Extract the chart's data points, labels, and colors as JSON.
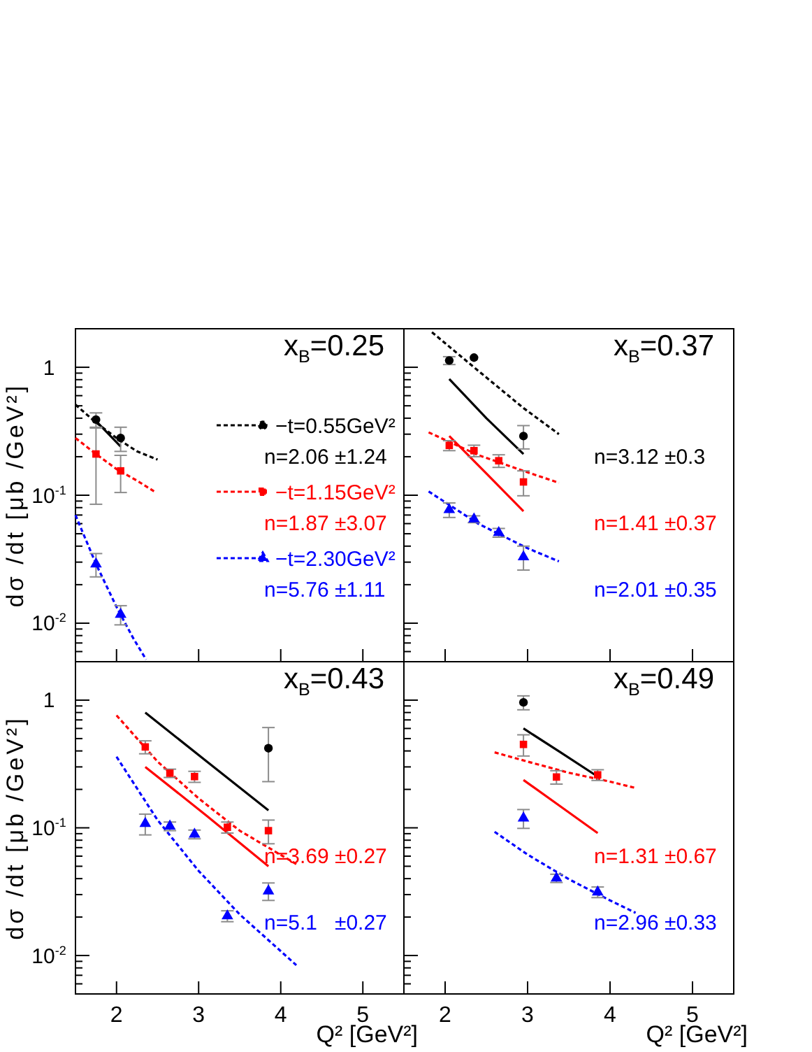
{
  "chart_data": [
    {
      "type": "line",
      "title": "x$_{B}$=0.25",
      "ylabel": "dσ /dt [μb /GeV²]",
      "xlim": [
        1.5,
        5.5
      ],
      "xticks": [
        2,
        3,
        4,
        5
      ],
      "ylim": [
        0.005,
        2
      ],
      "yticks": [
        {
          "value": 0.006,
          "label": null
        },
        {
          "value": 0.007,
          "label": null
        },
        {
          "value": 0.008,
          "label": null
        },
        {
          "value": 0.009,
          "label": null
        },
        {
          "value": 0.01,
          "label": "10$^{-2}$"
        },
        {
          "value": 0.02,
          "label": null
        },
        {
          "value": 0.03,
          "label": null
        },
        {
          "value": 0.04,
          "label": null
        },
        {
          "value": 0.05,
          "label": null
        },
        {
          "value": 0.06,
          "label": null
        },
        {
          "value": 0.07,
          "label": null
        },
        {
          "value": 0.08,
          "label": null
        },
        {
          "value": 0.09,
          "label": null
        },
        {
          "value": 0.1,
          "label": "10$^{-1}$"
        },
        {
          "value": 0.2,
          "label": null
        },
        {
          "value": 0.3,
          "label": null
        },
        {
          "value": 0.4,
          "label": null
        },
        {
          "value": 0.5,
          "label": null
        },
        {
          "value": 0.6,
          "label": null
        },
        {
          "value": 0.7,
          "label": null
        },
        {
          "value": 0.8,
          "label": null
        },
        {
          "value": 0.9,
          "label": null
        },
        1
      ],
      "log": "y",
      "tick_labels": "y",
      "legend": "right",
      "series": [
        {
          "type": "scatter",
          "name": "−t=0.55GeV²",
          "color": "#000000",
          "marker": "circle",
          "x": [
            1.75,
            2.05
          ],
          "values": [
            0.39,
            0.28
          ],
          "errors": [
            0.05,
            0.06
          ]
        },
        {
          "type": "line",
          "name": "n=2.06 ±1.24",
          "color": "#000000",
          "line_style": "dotted",
          "x": [
            1.5,
            1.75,
            2.0,
            2.25,
            2.5
          ],
          "values": [
            0.51,
            0.37,
            0.28,
            0.22,
            0.19
          ]
        },
        {
          "type": "line",
          "color": "#000000",
          "line_style": "solid",
          "x": [
            1.75,
            2.05
          ],
          "values": [
            0.38,
            0.24
          ]
        },
        {
          "type": "scatter",
          "name": "−t=1.15GeV²",
          "color": "#ff0000",
          "marker": "square",
          "x": [
            1.75,
            2.05
          ],
          "values": [
            0.21,
            0.155
          ],
          "errors": [
            0.125,
            0.05
          ]
        },
        {
          "type": "line",
          "name": "n=1.87 ±3.07",
          "color": "#ff0000",
          "line_style": "dotted",
          "x": [
            1.5,
            1.75,
            2.0,
            2.25,
            2.48
          ],
          "values": [
            0.28,
            0.21,
            0.16,
            0.13,
            0.105
          ]
        },
        {
          "type": "scatter",
          "name": "−t=2.30GeV²",
          "color": "#0000ff",
          "marker": "triangle",
          "x": [
            1.75,
            2.05
          ],
          "values": [
            0.029,
            0.0117
          ],
          "errors": [
            0.006,
            0.002
          ]
        },
        {
          "type": "line",
          "name": "n=5.76 ±1.11",
          "color": "#0000ff",
          "line_style": "dotted",
          "x": [
            1.5,
            1.75,
            2.0,
            2.2,
            2.36
          ],
          "values": [
            0.07,
            0.029,
            0.0134,
            0.0077,
            0.0052
          ]
        }
      ]
    },
    {
      "type": "line",
      "title": "x$_{B}$=0.37",
      "xlim": [
        1.5,
        5.5
      ],
      "xticks": [
        2,
        3,
        4,
        5
      ],
      "ylim": [
        0.005,
        2
      ],
      "yticks": [
        {
          "value": 0.006,
          "label": null
        },
        {
          "value": 0.007,
          "label": null
        },
        {
          "value": 0.008,
          "label": null
        },
        {
          "value": 0.009,
          "label": null
        },
        0.01,
        {
          "value": 0.02,
          "label": null
        },
        {
          "value": 0.03,
          "label": null
        },
        {
          "value": 0.04,
          "label": null
        },
        {
          "value": 0.05,
          "label": null
        },
        {
          "value": 0.06,
          "label": null
        },
        {
          "value": 0.07,
          "label": null
        },
        {
          "value": 0.08,
          "label": null
        },
        {
          "value": 0.09,
          "label": null
        },
        0.1,
        {
          "value": 0.2,
          "label": null
        },
        {
          "value": 0.3,
          "label": null
        },
        {
          "value": 0.4,
          "label": null
        },
        {
          "value": 0.5,
          "label": null
        },
        {
          "value": 0.6,
          "label": null
        },
        {
          "value": 0.7,
          "label": null
        },
        {
          "value": 0.8,
          "label": null
        },
        {
          "value": 0.9,
          "label": null
        },
        1
      ],
      "log": "y",
      "tick_labels": false,
      "series": [
        {
          "type": "scatter",
          "color": "#000000",
          "marker": "circle",
          "x": [
            2.05,
            2.35,
            2.95
          ],
          "values": [
            1.13,
            1.19,
            0.29
          ],
          "errors": [
            0.08,
            null,
            0.06
          ]
        },
        {
          "type": "line",
          "name": "n=3.12 ±0.3",
          "color": "#000000",
          "line_style": "dotted",
          "x": [
            1.84,
            2.35,
            2.95,
            3.38
          ],
          "values": [
            1.88,
            1.0,
            0.48,
            0.3
          ]
        },
        {
          "type": "line",
          "color": "#000000",
          "line_style": "solid",
          "x": [
            2.05,
            2.5,
            2.95
          ],
          "values": [
            0.81,
            0.4,
            0.21
          ]
        },
        {
          "type": "scatter",
          "color": "#ff0000",
          "marker": "square",
          "x": [
            2.05,
            2.35,
            2.65,
            2.95
          ],
          "values": [
            0.245,
            0.223,
            0.186,
            0.127
          ],
          "errors": [
            0.022,
            0.023,
            0.021,
            0.028
          ]
        },
        {
          "type": "line",
          "name": "n=1.41 ±0.37",
          "color": "#ff0000",
          "line_style": "dotted",
          "x": [
            1.8,
            2.4,
            3.0,
            3.38
          ],
          "values": [
            0.31,
            0.206,
            0.151,
            0.125
          ]
        },
        {
          "type": "line",
          "color": "#ff0000",
          "line_style": "solid",
          "x": [
            2.05,
            2.5,
            2.95
          ],
          "values": [
            0.29,
            0.148,
            0.075
          ]
        },
        {
          "type": "scatter",
          "color": "#0000ff",
          "marker": "triangle",
          "x": [
            2.05,
            2.35,
            2.65,
            2.95
          ],
          "values": [
            0.077,
            0.065,
            0.051,
            0.033
          ],
          "errors": [
            0.01,
            0.004,
            0.004,
            0.007
          ]
        },
        {
          "type": "line",
          "name": "n=2.01 ±0.35",
          "color": "#0000ff",
          "line_style": "dotted",
          "x": [
            1.8,
            2.4,
            3.0,
            3.38
          ],
          "values": [
            0.107,
            0.06,
            0.0385,
            0.0304
          ]
        }
      ]
    },
    {
      "type": "line",
      "title": "x$_{B}$=0.43",
      "xlabel": "Q² [GeV²]",
      "ylabel": "dσ /dt [μb /GeV²]",
      "xlim": [
        1.5,
        5.5
      ],
      "xticks": [
        2,
        3,
        4,
        5
      ],
      "ylim": [
        0.005,
        2
      ],
      "yticks": [
        {
          "value": 0.006,
          "label": null
        },
        {
          "value": 0.007,
          "label": null
        },
        {
          "value": 0.008,
          "label": null
        },
        {
          "value": 0.009,
          "label": null
        },
        {
          "value": 0.01,
          "label": "10$^{-2}$"
        },
        {
          "value": 0.02,
          "label": null
        },
        {
          "value": 0.03,
          "label": null
        },
        {
          "value": 0.04,
          "label": null
        },
        {
          "value": 0.05,
          "label": null
        },
        {
          "value": 0.06,
          "label": null
        },
        {
          "value": 0.07,
          "label": null
        },
        {
          "value": 0.08,
          "label": null
        },
        {
          "value": 0.09,
          "label": null
        },
        {
          "value": 0.1,
          "label": "10$^{-1}$"
        },
        {
          "value": 0.2,
          "label": null
        },
        {
          "value": 0.3,
          "label": null
        },
        {
          "value": 0.4,
          "label": null
        },
        {
          "value": 0.5,
          "label": null
        },
        {
          "value": 0.6,
          "label": null
        },
        {
          "value": 0.7,
          "label": null
        },
        {
          "value": 0.8,
          "label": null
        },
        {
          "value": 0.9,
          "label": null
        },
        1
      ],
      "log": "y",
      "series": [
        {
          "type": "scatter",
          "color": "#000000",
          "marker": "circle",
          "x": [
            3.85
          ],
          "values": [
            0.42
          ],
          "errors": [
            0.19
          ]
        },
        {
          "type": "line",
          "color": "#000000",
          "line_style": "solid",
          "x": [
            2.35,
            3.1,
            3.85
          ],
          "values": [
            0.8,
            0.33,
            0.137
          ]
        },
        {
          "type": "scatter",
          "color": "#ff0000",
          "marker": "square",
          "x": [
            2.35,
            2.65,
            2.95,
            3.35,
            3.85
          ],
          "values": [
            0.43,
            0.268,
            0.252,
            0.101,
            0.095
          ],
          "errors": [
            0.05,
            0.02,
            0.025,
            0.01,
            0.02
          ]
        },
        {
          "type": "line",
          "name": "n=3.69 ±0.27",
          "color": "#ff0000",
          "line_style": "dotted",
          "x": [
            2.0,
            2.5,
            3.0,
            3.5,
            4.19
          ],
          "values": [
            0.76,
            0.33,
            0.17,
            0.095,
            0.052
          ]
        },
        {
          "type": "line",
          "color": "#ff0000",
          "line_style": "solid",
          "x": [
            2.35,
            3.1,
            3.85
          ],
          "values": [
            0.3,
            0.124,
            0.05
          ]
        },
        {
          "type": "scatter",
          "color": "#0000ff",
          "marker": "triangle",
          "x": [
            2.35,
            2.65,
            2.95,
            3.35,
            3.85
          ],
          "values": [
            0.108,
            0.103,
            0.089,
            0.0204,
            0.032
          ],
          "errors": [
            0.02,
            0.008,
            0.007,
            0.002,
            0.005
          ]
        },
        {
          "type": "line",
          "name": "n=5.1   ±0.27",
          "color": "#0000ff",
          "line_style": "dotted",
          "x": [
            2.0,
            2.5,
            3.0,
            3.5,
            4.19
          ],
          "values": [
            0.36,
            0.115,
            0.046,
            0.021,
            0.0084
          ]
        }
      ]
    },
    {
      "type": "line",
      "title": "x$_{B}$=0.49",
      "xlabel": "Q² [GeV²]",
      "xlim": [
        1.5,
        5.5
      ],
      "xticks": [
        2,
        3,
        4,
        5
      ],
      "ylim": [
        0.005,
        2
      ],
      "yticks": [
        {
          "value": 0.006,
          "label": null
        },
        {
          "value": 0.007,
          "label": null
        },
        {
          "value": 0.008,
          "label": null
        },
        {
          "value": 0.009,
          "label": null
        },
        0.01,
        {
          "value": 0.02,
          "label": null
        },
        {
          "value": 0.03,
          "label": null
        },
        {
          "value": 0.04,
          "label": null
        },
        {
          "value": 0.05,
          "label": null
        },
        {
          "value": 0.06,
          "label": null
        },
        {
          "value": 0.07,
          "label": null
        },
        {
          "value": 0.08,
          "label": null
        },
        {
          "value": 0.09,
          "label": null
        },
        0.1,
        {
          "value": 0.2,
          "label": null
        },
        {
          "value": 0.3,
          "label": null
        },
        {
          "value": 0.4,
          "label": null
        },
        {
          "value": 0.5,
          "label": null
        },
        {
          "value": 0.6,
          "label": null
        },
        {
          "value": 0.7,
          "label": null
        },
        {
          "value": 0.8,
          "label": null
        },
        {
          "value": 0.9,
          "label": null
        },
        1
      ],
      "log": "y",
      "tick_labels": "x",
      "series": [
        {
          "type": "scatter",
          "color": "#000000",
          "marker": "circle",
          "x": [
            2.95
          ],
          "values": [
            0.96
          ],
          "errors": [
            0.12
          ]
        },
        {
          "type": "line",
          "color": "#000000",
          "line_style": "solid",
          "x": [
            2.95,
            3.4,
            3.85
          ],
          "values": [
            0.6,
            0.39,
            0.252
          ]
        },
        {
          "type": "scatter",
          "color": "#ff0000",
          "marker": "square",
          "x": [
            2.95,
            3.35,
            3.85
          ],
          "values": [
            0.45,
            0.25,
            0.26
          ],
          "errors": [
            0.085,
            0.03,
            0.025
          ]
        },
        {
          "type": "line",
          "name": "n=1.31 ±0.67",
          "color": "#ff0000",
          "line_style": "dotted",
          "x": [
            2.6,
            3.0,
            3.5,
            4.0,
            4.31
          ],
          "values": [
            0.39,
            0.33,
            0.27,
            0.23,
            0.205
          ]
        },
        {
          "type": "line",
          "color": "#ff0000",
          "line_style": "solid",
          "x": [
            2.95,
            3.4,
            3.85
          ],
          "values": [
            0.237,
            0.147,
            0.091
          ]
        },
        {
          "type": "scatter",
          "color": "#0000ff",
          "marker": "triangle",
          "x": [
            2.95,
            3.35,
            3.85
          ],
          "values": [
            0.119,
            0.0403,
            0.0314
          ],
          "errors": [
            0.02,
            0.003,
            0.003
          ]
        },
        {
          "type": "line",
          "name": "n=2.96 ±0.33",
          "color": "#0000ff",
          "line_style": "dotted",
          "x": [
            2.6,
            3.0,
            3.5,
            4.0,
            4.31
          ],
          "values": [
            0.093,
            0.0617,
            0.0396,
            0.027,
            0.0216
          ]
        }
      ]
    }
  ]
}
